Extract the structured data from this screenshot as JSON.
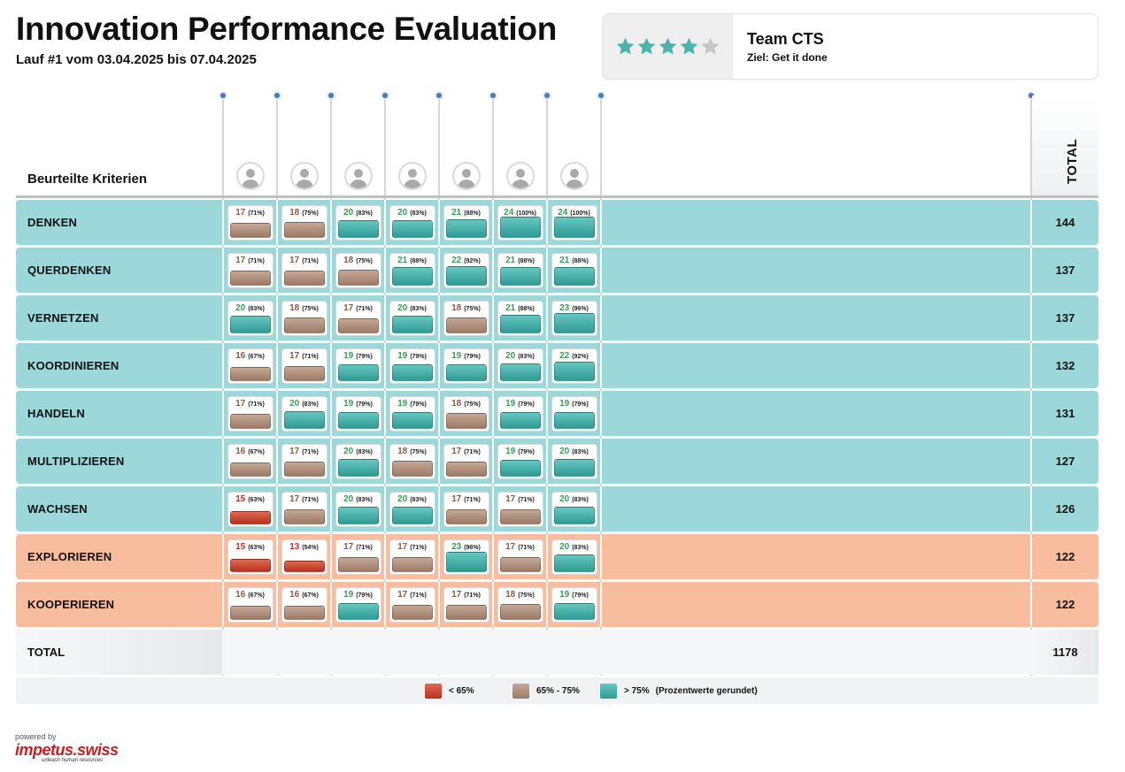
{
  "header": {
    "title": "Innovation Performance Evaluation",
    "subtitle": "Lauf #1 vom 03.04.2025 bis 07.04.2025"
  },
  "team": {
    "name": "Team CTS",
    "goal": "Ziel: Get it done",
    "rating": 4,
    "rating_max": 5
  },
  "table": {
    "criteria_header": "Beurteilte Kriterien",
    "total_header": "TOTAL",
    "participant_count": 7,
    "rows": [
      {
        "label": "DENKEN",
        "total": "144",
        "tone": "teal",
        "cells": [
          [
            "17",
            "(71%)"
          ],
          [
            "18",
            "(75%)"
          ],
          [
            "20",
            "(83%)"
          ],
          [
            "20",
            "(83%)"
          ],
          [
            "21",
            "(88%)"
          ],
          [
            "24",
            "(100%)"
          ],
          [
            "24",
            "(100%)"
          ]
        ]
      },
      {
        "label": "QUERDENKEN",
        "total": "137",
        "tone": "teal",
        "cells": [
          [
            "17",
            "(71%)"
          ],
          [
            "17",
            "(71%)"
          ],
          [
            "18",
            "(75%)"
          ],
          [
            "21",
            "(88%)"
          ],
          [
            "22",
            "(92%)"
          ],
          [
            "21",
            "(88%)"
          ],
          [
            "21",
            "(88%)"
          ]
        ]
      },
      {
        "label": "VERNETZEN",
        "total": "137",
        "tone": "teal",
        "cells": [
          [
            "20",
            "(83%)"
          ],
          [
            "18",
            "(75%)"
          ],
          [
            "17",
            "(71%)"
          ],
          [
            "20",
            "(83%)"
          ],
          [
            "18",
            "(75%)"
          ],
          [
            "21",
            "(88%)"
          ],
          [
            "23",
            "(96%)"
          ]
        ]
      },
      {
        "label": "KOORDINIEREN",
        "total": "132",
        "tone": "teal",
        "cells": [
          [
            "16",
            "(67%)"
          ],
          [
            "17",
            "(71%)"
          ],
          [
            "19",
            "(79%)"
          ],
          [
            "19",
            "(79%)"
          ],
          [
            "19",
            "(79%)"
          ],
          [
            "20",
            "(83%)"
          ],
          [
            "22",
            "(92%)"
          ]
        ]
      },
      {
        "label": "HANDELN",
        "total": "131",
        "tone": "teal",
        "cells": [
          [
            "17",
            "(71%)"
          ],
          [
            "20",
            "(83%)"
          ],
          [
            "19",
            "(79%)"
          ],
          [
            "19",
            "(79%)"
          ],
          [
            "18",
            "(75%)"
          ],
          [
            "19",
            "(79%)"
          ],
          [
            "19",
            "(79%)"
          ]
        ]
      },
      {
        "label": "MULTIPLIZIEREN",
        "total": "127",
        "tone": "teal",
        "cells": [
          [
            "16",
            "(67%)"
          ],
          [
            "17",
            "(71%)"
          ],
          [
            "20",
            "(83%)"
          ],
          [
            "18",
            "(75%)"
          ],
          [
            "17",
            "(71%)"
          ],
          [
            "19",
            "(79%)"
          ],
          [
            "20",
            "(83%)"
          ]
        ]
      },
      {
        "label": "WACHSEN",
        "total": "126",
        "tone": "teal",
        "cells": [
          [
            "15",
            "(63%)"
          ],
          [
            "17",
            "(71%)"
          ],
          [
            "20",
            "(83%)"
          ],
          [
            "20",
            "(83%)"
          ],
          [
            "17",
            "(71%)"
          ],
          [
            "17",
            "(71%)"
          ],
          [
            "20",
            "(83%)"
          ]
        ]
      },
      {
        "label": "EXPLORIEREN",
        "total": "122",
        "tone": "salmon",
        "cells": [
          [
            "15",
            "(63%)"
          ],
          [
            "13",
            "(54%)"
          ],
          [
            "17",
            "(71%)"
          ],
          [
            "17",
            "(71%)"
          ],
          [
            "23",
            "(96%)"
          ],
          [
            "17",
            "(71%)"
          ],
          [
            "20",
            "(83%)"
          ]
        ]
      },
      {
        "label": "KOOPERIEREN",
        "total": "122",
        "tone": "salmon",
        "cells": [
          [
            "16",
            "(67%)"
          ],
          [
            "16",
            "(67%)"
          ],
          [
            "19",
            "(79%)"
          ],
          [
            "17",
            "(71%)"
          ],
          [
            "17",
            "(71%)"
          ],
          [
            "18",
            "(75%)"
          ],
          [
            "19",
            "(79%)"
          ]
        ]
      }
    ],
    "grand_total_label": "TOTAL",
    "grand_total": "1178"
  },
  "legend": {
    "low": "< 65%",
    "mid": "65% - 75%",
    "high": "> 75%",
    "note": "(Prozentwerte gerundet)"
  },
  "colors": {
    "row_teal": "#9cd7d9",
    "row_salmon": "#f8bc9e",
    "low": "#c9432d",
    "mid": "#a88573",
    "high": "#3fb0a8",
    "star_on": "#4fb3aa",
    "star_off": "#c6c6c6"
  },
  "footer": {
    "powered_by": "powered by",
    "logo_text": "impetus.swiss",
    "logo_tagline": "unleash human resources"
  }
}
